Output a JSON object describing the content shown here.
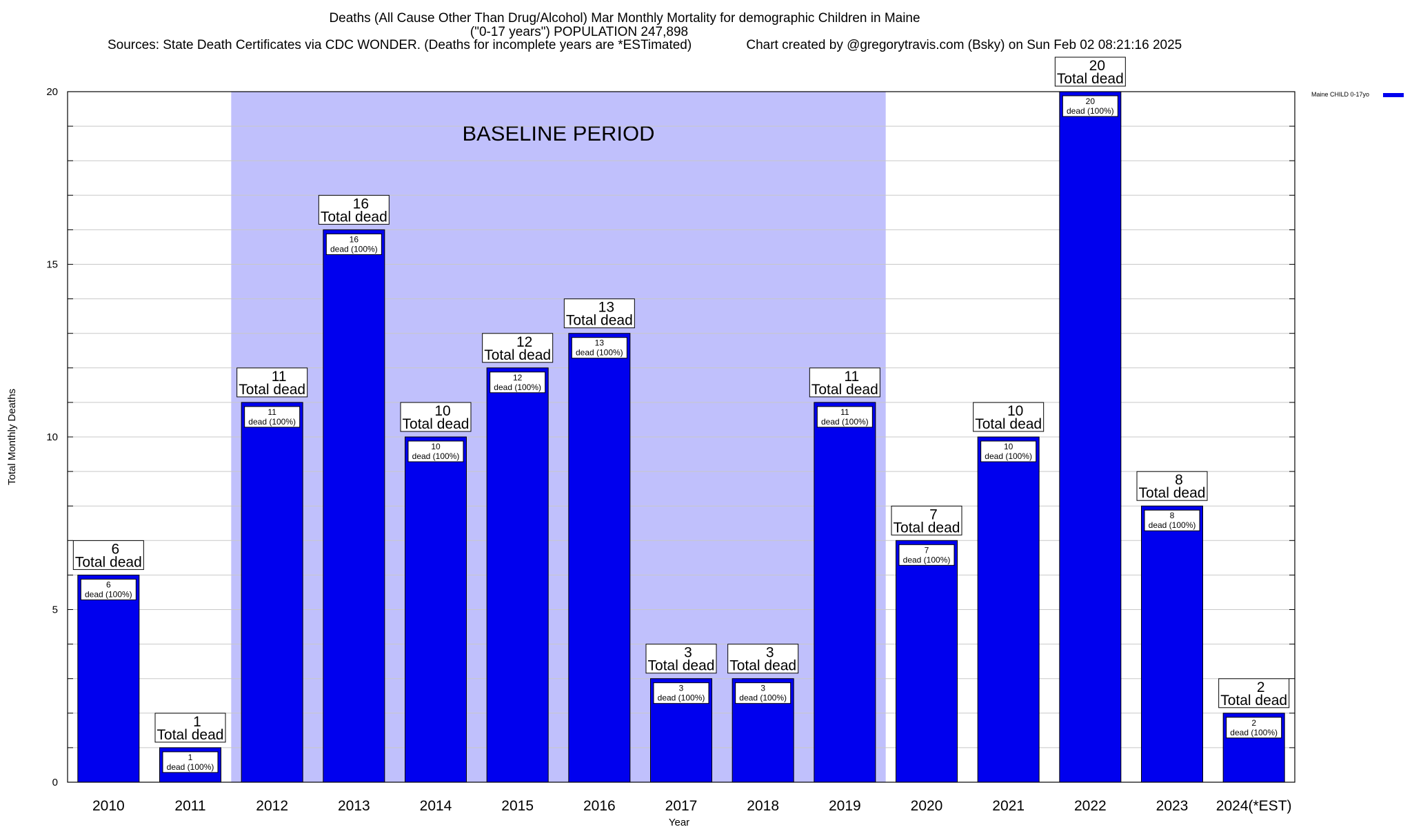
{
  "chart_data": {
    "type": "bar",
    "title": [
      "Deaths (All Cause Other Than Drug/Alcohol) Mar Monthly Mortality for demographic Children in Maine",
      "(\"0-17 years\") POPULATION 247,898",
      "Sources: State Death Certificates via CDC WONDER. (Deaths for incomplete years are *ESTimated)               Chart created by @gregorytravis.com (Bsky) on Sun Feb 02 08:21:16 2025"
    ],
    "xlabel": "Year",
    "ylabel": "Total Monthly Deaths",
    "ylim": [
      0,
      20
    ],
    "yticks": [
      0,
      5,
      10,
      15,
      20
    ],
    "ygrid_step": 1,
    "grid": true,
    "categories": [
      "2010",
      "2011",
      "2012",
      "2013",
      "2014",
      "2015",
      "2016",
      "2017",
      "2018",
      "2019",
      "2020",
      "2021",
      "2022",
      "2023",
      "2024(*EST)"
    ],
    "series": [
      {
        "name": "Maine CHILD 0-17yo",
        "color": "#0000ee",
        "values": [
          6,
          1,
          11,
          16,
          10,
          12,
          13,
          3,
          3,
          11,
          7,
          10,
          20,
          8,
          2
        ]
      }
    ],
    "total_label": "Total dead",
    "inner_label": "dead (100%)",
    "baseline_period": {
      "label": "BASELINE PERIOD",
      "from": "2012",
      "to": "2019",
      "color": "#c0c0fc"
    },
    "legend": {
      "position": "top-right",
      "entries": [
        "Maine CHILD 0-17yo"
      ]
    }
  }
}
